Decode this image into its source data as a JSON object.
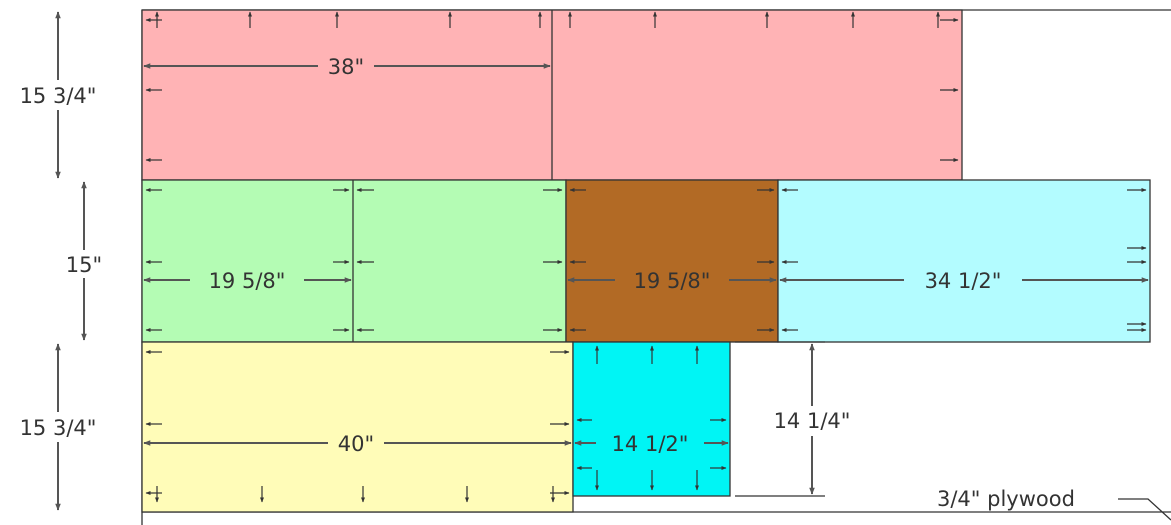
{
  "colors": {
    "red_panel": "#ffb3b5",
    "green_panel": "#b4fcb4",
    "brown_panel": "#b26a25",
    "light_cyan_panel": "#b3fcff",
    "yellow_panel": "#fffcb8",
    "cyan_panel": "#00f5f5",
    "line": "#555555"
  },
  "dimensions": {
    "top_height": "15 3/4\"",
    "top_width": "38\"",
    "middle_height": "15\"",
    "green_width": "19 5/8\"",
    "brown_width": "19 5/8\"",
    "light_cyan_width": "34 1/2\"",
    "bottom_height": "15 3/4\"",
    "yellow_width": "40\"",
    "cyan_width": "14 1/2\"",
    "cyan_height": "14 1/4\""
  },
  "material_label": "3/4\" plywood"
}
